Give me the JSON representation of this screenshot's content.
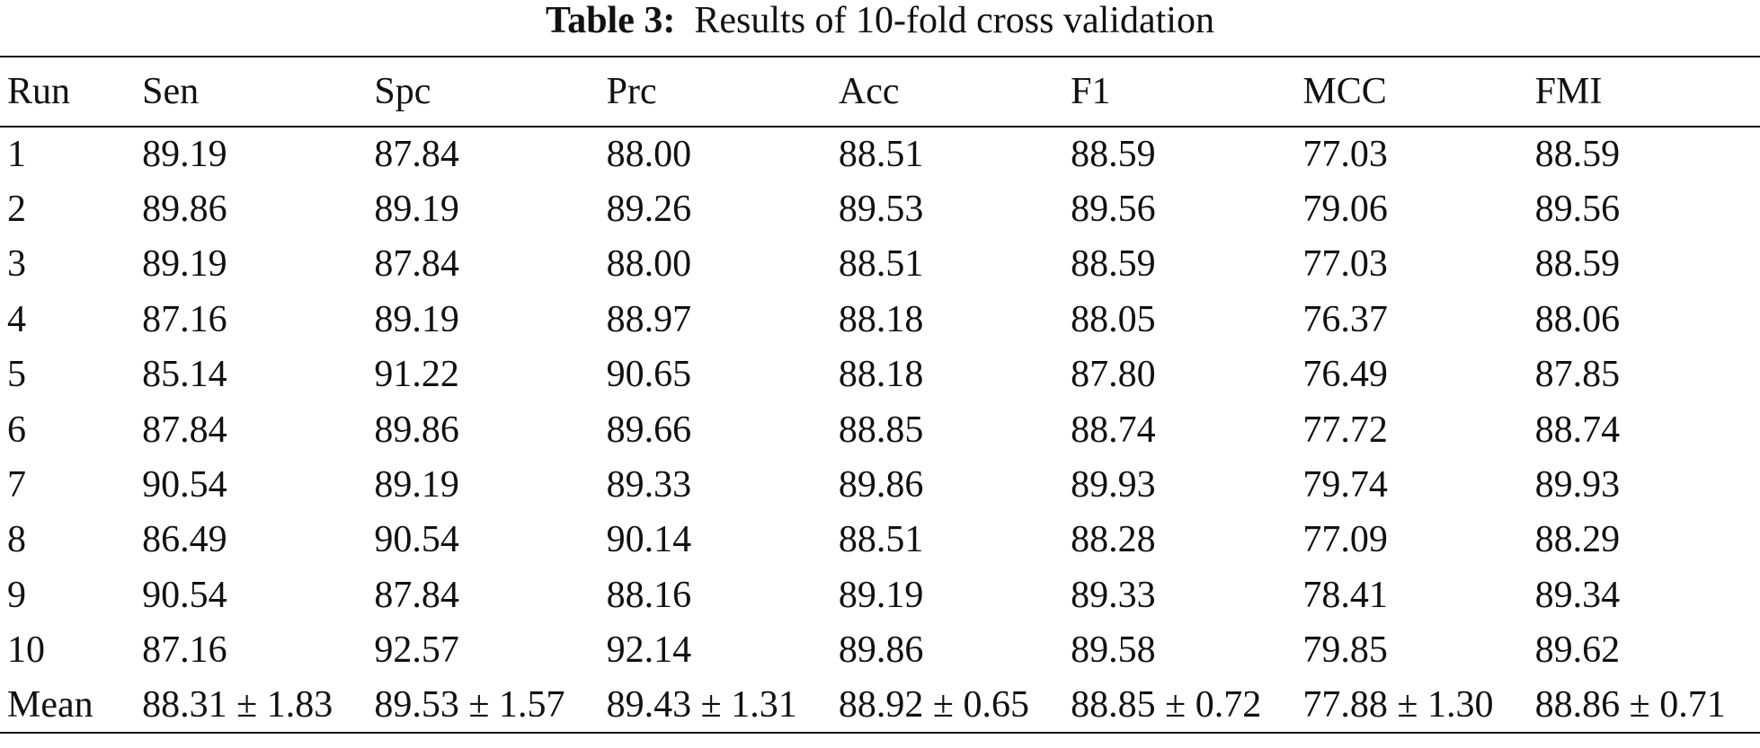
{
  "caption": {
    "label": "Table 3:",
    "text": "Results of 10-fold cross validation"
  },
  "table": {
    "headers": [
      "Run",
      "Sen",
      "Spc",
      "Prc",
      "Acc",
      "F1",
      "MCC",
      "FMI"
    ],
    "rows": [
      [
        "1",
        "89.19",
        "87.84",
        "88.00",
        "88.51",
        "88.59",
        "77.03",
        "88.59"
      ],
      [
        "2",
        "89.86",
        "89.19",
        "89.26",
        "89.53",
        "89.56",
        "79.06",
        "89.56"
      ],
      [
        "3",
        "89.19",
        "87.84",
        "88.00",
        "88.51",
        "88.59",
        "77.03",
        "88.59"
      ],
      [
        "4",
        "87.16",
        "89.19",
        "88.97",
        "88.18",
        "88.05",
        "76.37",
        "88.06"
      ],
      [
        "5",
        "85.14",
        "91.22",
        "90.65",
        "88.18",
        "87.80",
        "76.49",
        "87.85"
      ],
      [
        "6",
        "87.84",
        "89.86",
        "89.66",
        "88.85",
        "88.74",
        "77.72",
        "88.74"
      ],
      [
        "7",
        "90.54",
        "89.19",
        "89.33",
        "89.86",
        "89.93",
        "79.74",
        "89.93"
      ],
      [
        "8",
        "86.49",
        "90.54",
        "90.14",
        "88.51",
        "88.28",
        "77.09",
        "88.29"
      ],
      [
        "9",
        "90.54",
        "87.84",
        "88.16",
        "89.19",
        "89.33",
        "78.41",
        "89.34"
      ],
      [
        "10",
        "87.16",
        "92.57",
        "92.14",
        "89.86",
        "89.58",
        "79.85",
        "89.62"
      ],
      [
        "Mean",
        "88.31 ± 1.83",
        "89.53 ± 1.57",
        "89.43 ± 1.31",
        "88.92 ± 0.65",
        "88.85 ± 0.72",
        "77.88 ± 1.30",
        "88.86 ± 0.71"
      ]
    ]
  }
}
